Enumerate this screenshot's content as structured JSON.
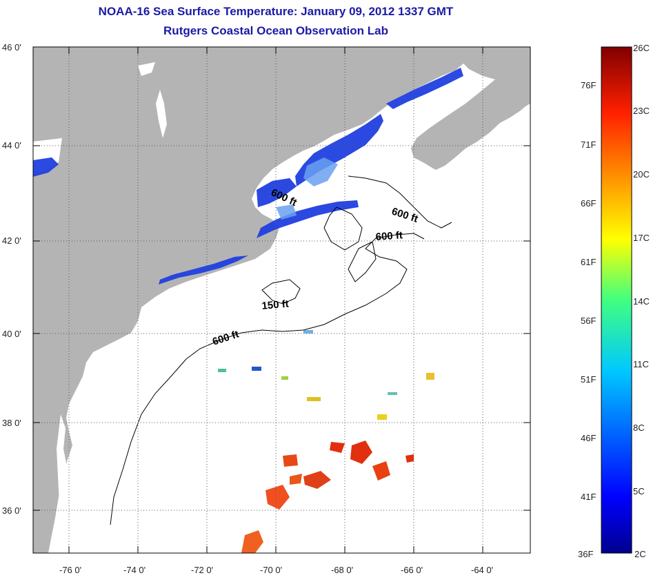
{
  "title": {
    "line1": "NOAA-16 Sea Surface Temperature:  January 09, 2012 1337 GMT",
    "line2": "Rutgers Coastal Ocean Observation Lab"
  },
  "map": {
    "lat_labels": [
      "46 0'",
      "44 0'",
      "42 0'",
      "40 0'",
      "38 0'",
      "36 0'"
    ],
    "lon_labels": [
      "-76 0'",
      "-74 0'",
      "-72 0'",
      "-70 0'",
      "-68 0'",
      "-66 0'",
      "-64 0'"
    ],
    "lat_range": [
      35,
      46
    ],
    "lon_range": [
      -77,
      -62.5
    ],
    "contour_labels": [
      "600 ft",
      "600 ft",
      "600 ft",
      "150 ft",
      "600 ft"
    ],
    "colors": {
      "land": "#b4b4b4",
      "ocean": "#ffffff",
      "cold_water": "#2040e0",
      "warm_water": "#e03010"
    }
  },
  "colorbar": {
    "celsius_labels": [
      "26C",
      "23C",
      "20C",
      "17C",
      "14C",
      "11C",
      "8C",
      "5C",
      "2C"
    ],
    "fahrenheit_labels": [
      "76F",
      "71F",
      "66F",
      "61F",
      "56F",
      "51F",
      "46F",
      "41F",
      "36F"
    ],
    "range_celsius": [
      2,
      26
    ],
    "colormap": "jet"
  }
}
